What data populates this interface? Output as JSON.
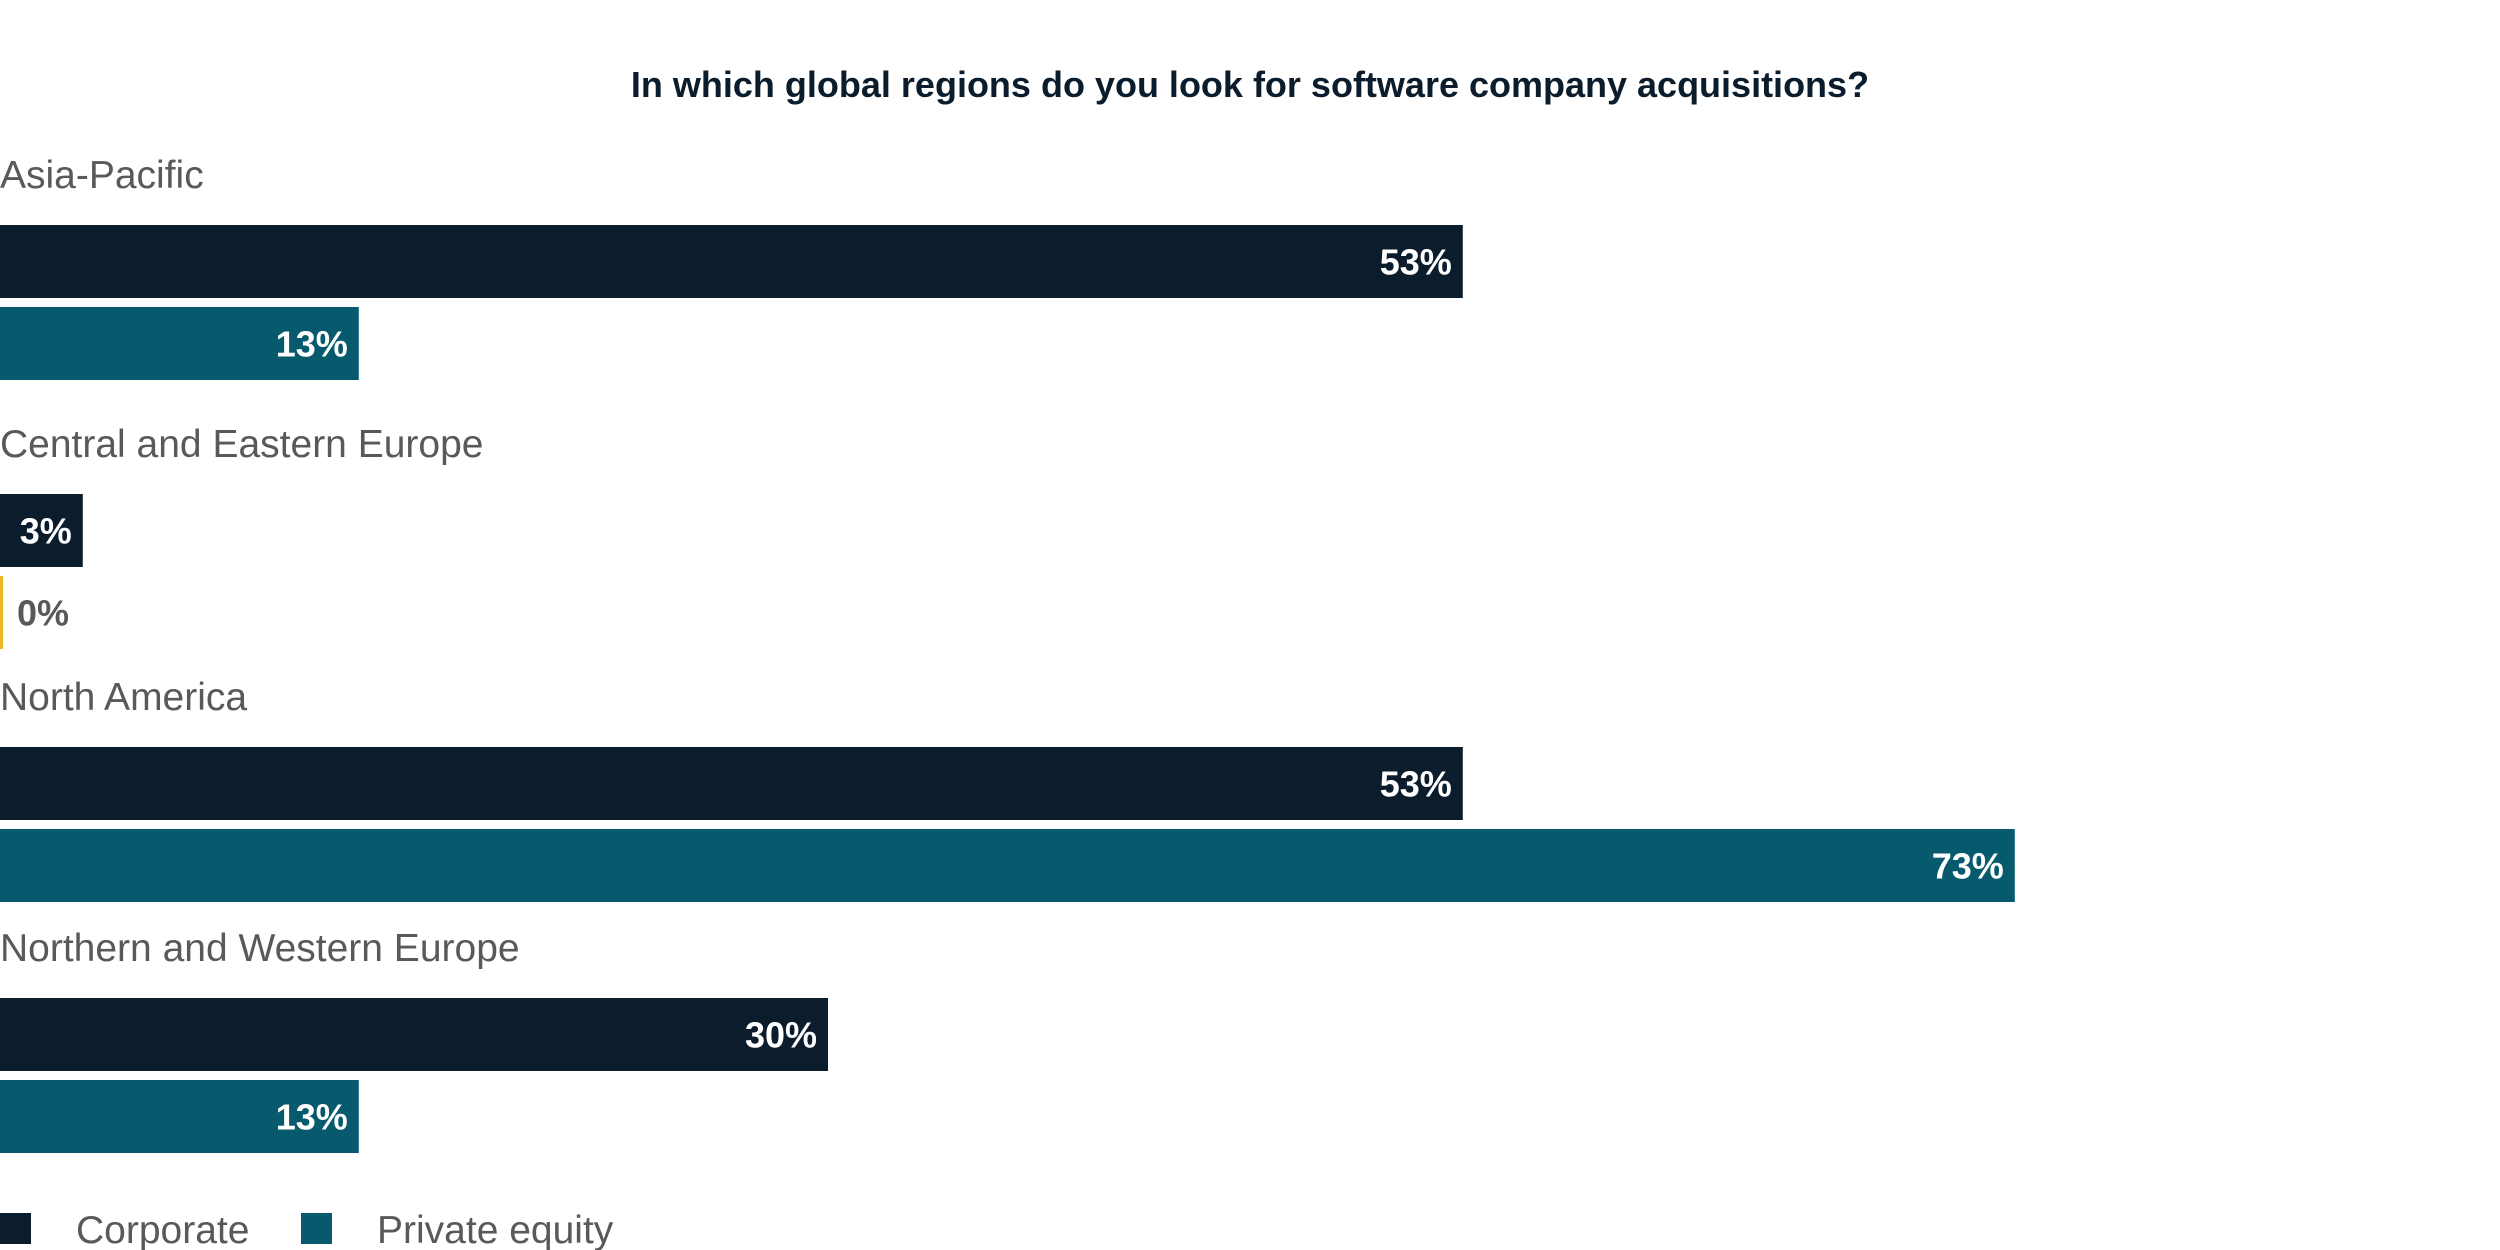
{
  "chart_data": {
    "type": "bar",
    "orientation": "horizontal",
    "title": "In which global regions do you look for software company acquisitions?",
    "categories": [
      "Asia-Pacific",
      "Central and Eastern Europe",
      "North America",
      "Northern and Western Europe"
    ],
    "series": [
      {
        "name": "Corporate",
        "color": "#0b1d2c",
        "values": [
          53,
          3,
          53,
          30
        ],
        "labels": [
          "53%",
          "3%",
          "53%",
          "30%"
        ]
      },
      {
        "name": "Private equity",
        "color": "#075a6e",
        "values": [
          13,
          0,
          73,
          13
        ],
        "labels": [
          "13%",
          "0%",
          "73%",
          "13%"
        ]
      }
    ],
    "xlabel": "",
    "ylabel": "",
    "legend_position": "bottom-left",
    "grid": false,
    "value_label_color": "#ffffff",
    "outside_label_color": "#58595b",
    "zero_marker_color": "#e8b923",
    "title_color": "#0b1d2c"
  }
}
